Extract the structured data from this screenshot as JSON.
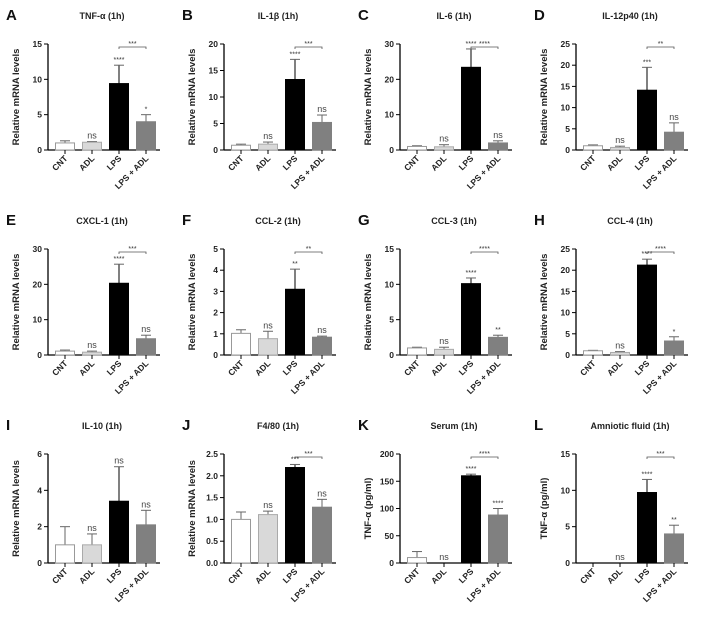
{
  "chart_data": {
    "type": "bar",
    "categories": [
      "CNT",
      "ADL",
      "LPS",
      "LPS + ADL"
    ],
    "bar_colors": [
      "#ffffff",
      "#d9d9d9",
      "#000000",
      "#808080"
    ],
    "panels": [
      {
        "letter": "A",
        "title": "TNF-α (1h)",
        "ylabel": "Relative mRNA levels",
        "ylim": [
          0,
          15
        ],
        "yticks": [
          "0",
          "5",
          "10",
          "15"
        ],
        "values": [
          1.0,
          1.1,
          9.4,
          4.0
        ],
        "errors": [
          0.3,
          0.1,
          2.6,
          1.0
        ],
        "sig": [
          "",
          "ns",
          "****",
          "*"
        ],
        "bracket": "***"
      },
      {
        "letter": "B",
        "title": "IL-1β (1h)",
        "ylabel": "Relative mRNA levels",
        "ylim": [
          0,
          20
        ],
        "yticks": [
          "0",
          "5",
          "10",
          "15",
          "20"
        ],
        "values": [
          0.9,
          1.1,
          13.3,
          5.2
        ],
        "errors": [
          0.2,
          0.4,
          3.8,
          1.4
        ],
        "sig": [
          "",
          "ns",
          "****",
          "ns"
        ],
        "bracket": "***"
      },
      {
        "letter": "C",
        "title": "IL-6 (1h)",
        "ylabel": "Relative mRNA levels",
        "ylim": [
          0,
          30
        ],
        "yticks": [
          "0",
          "10",
          "20",
          "30"
        ],
        "values": [
          1.0,
          0.9,
          23.4,
          2.0
        ],
        "errors": [
          0.2,
          0.6,
          5.2,
          0.6
        ],
        "sig": [
          "",
          "ns",
          "****",
          "ns"
        ],
        "bracket": "****"
      },
      {
        "letter": "D",
        "title": "IL-12p40 (1h)",
        "ylabel": "Relative mRNA levels",
        "ylim": [
          0,
          25
        ],
        "yticks": [
          "0",
          "5",
          "10",
          "15",
          "20",
          "25"
        ],
        "values": [
          1.0,
          0.6,
          14.1,
          4.2
        ],
        "errors": [
          0.2,
          0.3,
          5.4,
          2.2
        ],
        "sig": [
          "",
          "ns",
          "***",
          "ns"
        ],
        "bracket": "**"
      },
      {
        "letter": "E",
        "title": "CXCL-1 (1h)",
        "ylabel": "Relative mRNA levels",
        "ylim": [
          0,
          30
        ],
        "yticks": [
          "0",
          "10",
          "20",
          "30"
        ],
        "values": [
          1.1,
          0.8,
          20.3,
          4.6
        ],
        "errors": [
          0.3,
          0.3,
          5.4,
          1.0
        ],
        "sig": [
          "",
          "ns",
          "****",
          "ns"
        ],
        "bracket": "***"
      },
      {
        "letter": "F",
        "title": "CCL-2 (1h)",
        "ylabel": "Relative mRNA levels",
        "ylim": [
          0,
          5
        ],
        "yticks": [
          "0",
          "1",
          "2",
          "3",
          "4",
          "5"
        ],
        "values": [
          1.02,
          0.77,
          3.1,
          0.84
        ],
        "errors": [
          0.17,
          0.35,
          0.95,
          0.05
        ],
        "sig": [
          "",
          "ns",
          "**",
          "ns"
        ],
        "bracket": "**"
      },
      {
        "letter": "G",
        "title": "CCL-3 (1h)",
        "ylabel": "Relative mRNA levels",
        "ylim": [
          0,
          15
        ],
        "yticks": [
          "0",
          "5",
          "10",
          "15"
        ],
        "values": [
          1.0,
          0.8,
          10.1,
          2.5
        ],
        "errors": [
          0.1,
          0.3,
          0.8,
          0.3
        ],
        "sig": [
          "",
          "ns",
          "****",
          "**"
        ],
        "bracket": "****"
      },
      {
        "letter": "H",
        "title": "CCL-4 (1h)",
        "ylabel": "Relative mRNA levels",
        "ylim": [
          0,
          25
        ],
        "yticks": [
          "0",
          "5",
          "10",
          "15",
          "20",
          "25"
        ],
        "values": [
          1.0,
          0.6,
          21.2,
          3.3
        ],
        "errors": [
          0.1,
          0.2,
          1.4,
          1.0
        ],
        "sig": [
          "",
          "ns",
          "****",
          "*"
        ],
        "bracket": "****"
      },
      {
        "letter": "I",
        "title": "IL-10 (1h)",
        "ylabel": "Relative mRNA levels",
        "ylim": [
          0,
          6
        ],
        "yticks": [
          "0",
          "2",
          "4",
          "6"
        ],
        "values": [
          1.0,
          1.0,
          3.4,
          2.1
        ],
        "errors": [
          1.0,
          0.6,
          1.9,
          0.8
        ],
        "sig": [
          "",
          "ns",
          "ns",
          "ns"
        ],
        "bracket": ""
      },
      {
        "letter": "J",
        "title": "F4/80 (1h)",
        "ylabel": "Relative mRNA levels",
        "ylim": [
          0,
          2.5
        ],
        "yticks": [
          "0.0",
          "0.5",
          "1.0",
          "1.5",
          "2.0",
          "2.5"
        ],
        "values": [
          1.0,
          1.11,
          2.19,
          1.28
        ],
        "errors": [
          0.17,
          0.08,
          0.07,
          0.18
        ],
        "sig": [
          "",
          "ns",
          "***",
          "ns"
        ],
        "bracket": "***"
      },
      {
        "letter": "K",
        "title": "Serum (1h)",
        "ylabel": "TNF-α (pg/ml)",
        "ylim": [
          0,
          200
        ],
        "yticks": [
          "0",
          "50",
          "100",
          "150",
          "200"
        ],
        "values": [
          10,
          0,
          160,
          88
        ],
        "errors": [
          11,
          0,
          3,
          12
        ],
        "sig": [
          "",
          "ns",
          "****",
          "****"
        ],
        "bracket": "****"
      },
      {
        "letter": "L",
        "title": "Amniotic fluid (1h)",
        "ylabel": "TNF-α (pg/ml)",
        "ylim": [
          0,
          15
        ],
        "yticks": [
          "0",
          "5",
          "10",
          "15"
        ],
        "values": [
          0,
          0,
          9.7,
          4.0
        ],
        "errors": [
          0,
          0,
          1.8,
          1.2
        ],
        "sig": [
          "",
          "ns",
          "****",
          "**"
        ],
        "bracket": "***"
      }
    ]
  }
}
